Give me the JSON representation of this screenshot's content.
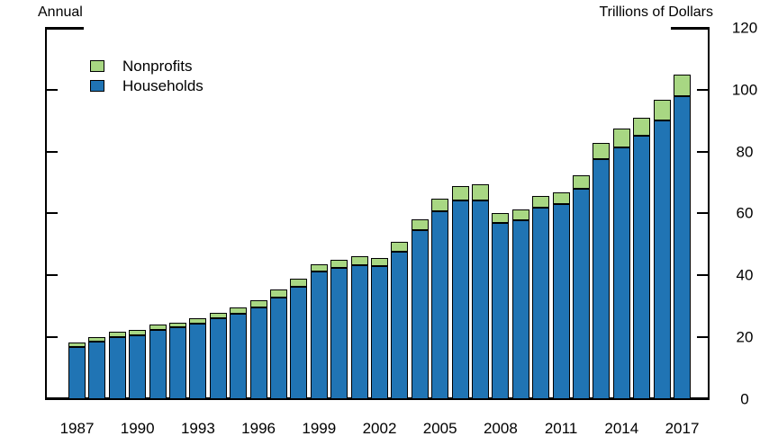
{
  "titles": {
    "left": "Annual",
    "right": "Trillions of Dollars"
  },
  "legend": [
    {
      "label": "Nonprofits",
      "color": "#a8d783"
    },
    {
      "label": "Households",
      "color": "#2074b4"
    }
  ],
  "colors": {
    "households": "#2074b4",
    "nonprofits": "#a8d783",
    "outline": "#000000",
    "background": "#ffffff"
  },
  "chart_data": {
    "type": "bar",
    "stacked": true,
    "title": "",
    "xlabel": "",
    "ylabel": "Trillions of Dollars",
    "frequency": "Annual",
    "x": [
      1987,
      1988,
      1989,
      1990,
      1991,
      1992,
      1993,
      1994,
      1995,
      1996,
      1997,
      1998,
      1999,
      2000,
      2001,
      2002,
      2003,
      2004,
      2005,
      2006,
      2007,
      2008,
      2009,
      2010,
      2011,
      2012,
      2013,
      2014,
      2015,
      2016,
      2017
    ],
    "series": [
      {
        "name": "Households",
        "color": "#2074b4",
        "values": [
          16.7,
          18.5,
          20.0,
          20.6,
          22.2,
          23.0,
          24.4,
          26.1,
          27.6,
          29.6,
          32.7,
          36.2,
          41.2,
          42.4,
          43.2,
          43.0,
          47.5,
          54.5,
          60.7,
          64.2,
          64.1,
          56.8,
          57.7,
          61.8,
          63.1,
          67.9,
          77.4,
          81.3,
          85.1,
          90.0,
          97.8
        ]
      },
      {
        "name": "Nonprofits",
        "color": "#a8d783",
        "values": [
          1.5,
          1.4,
          1.8,
          1.6,
          1.7,
          1.7,
          1.7,
          1.8,
          1.9,
          2.4,
          2.6,
          2.6,
          2.4,
          2.5,
          2.9,
          2.4,
          3.3,
          3.5,
          4.0,
          4.5,
          5.4,
          3.2,
          3.6,
          3.7,
          3.7,
          4.4,
          5.3,
          6.2,
          5.7,
          6.6,
          7.1
        ]
      }
    ],
    "xticks": [
      1987,
      1990,
      1993,
      1996,
      1999,
      2002,
      2005,
      2008,
      2011,
      2014,
      2017
    ],
    "yticks": [
      0,
      20,
      40,
      60,
      80,
      100,
      120
    ],
    "ylim": [
      0,
      120
    ],
    "grid": false,
    "legend_position": "top-left-inside"
  }
}
